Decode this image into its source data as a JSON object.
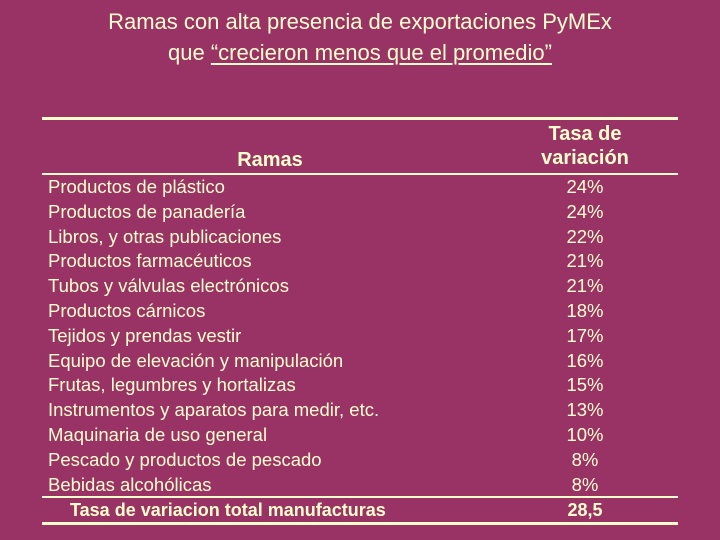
{
  "title": {
    "line1": "Ramas con alta presencia de exportaciones PyMEx",
    "line2_prefix": "que ",
    "line2_underlined": "“crecieron menos que el promedio”"
  },
  "table": {
    "header_ramas": "Ramas",
    "header_tasa_line1": "Tasa de",
    "header_tasa_line2": "variación",
    "rows": [
      {
        "name": "Productos de plástico",
        "value": "24%"
      },
      {
        "name": "Productos de panadería",
        "value": "24%"
      },
      {
        "name": "Libros, y otras publicaciones",
        "value": "22%"
      },
      {
        "name": "Productos farmacéuticos",
        "value": "21%"
      },
      {
        "name": "Tubos y válvulas electrónicos",
        "value": "21%"
      },
      {
        "name": "Productos cárnicos",
        "value": "18%"
      },
      {
        "name": "Tejidos y prendas vestir",
        "value": "17%"
      },
      {
        "name": "Equipo de elevación y manipulación",
        "value": "16%"
      },
      {
        "name": "Frutas, legumbres y hortalizas",
        "value": "15%"
      },
      {
        "name": "Instrumentos y aparatos para medir, etc.",
        "value": "13%"
      },
      {
        "name": "Maquinaria de uso general",
        "value": "10%"
      },
      {
        "name": "Pescado y productos de pescado",
        "value": "8%"
      },
      {
        "name": "Bebidas alcohólicas",
        "value": "8%"
      }
    ],
    "total": {
      "name": "Tasa de variacion total manufacturas",
      "value": "28,5"
    }
  },
  "colors": {
    "background": "#993366",
    "text": "#FFFFCC"
  }
}
